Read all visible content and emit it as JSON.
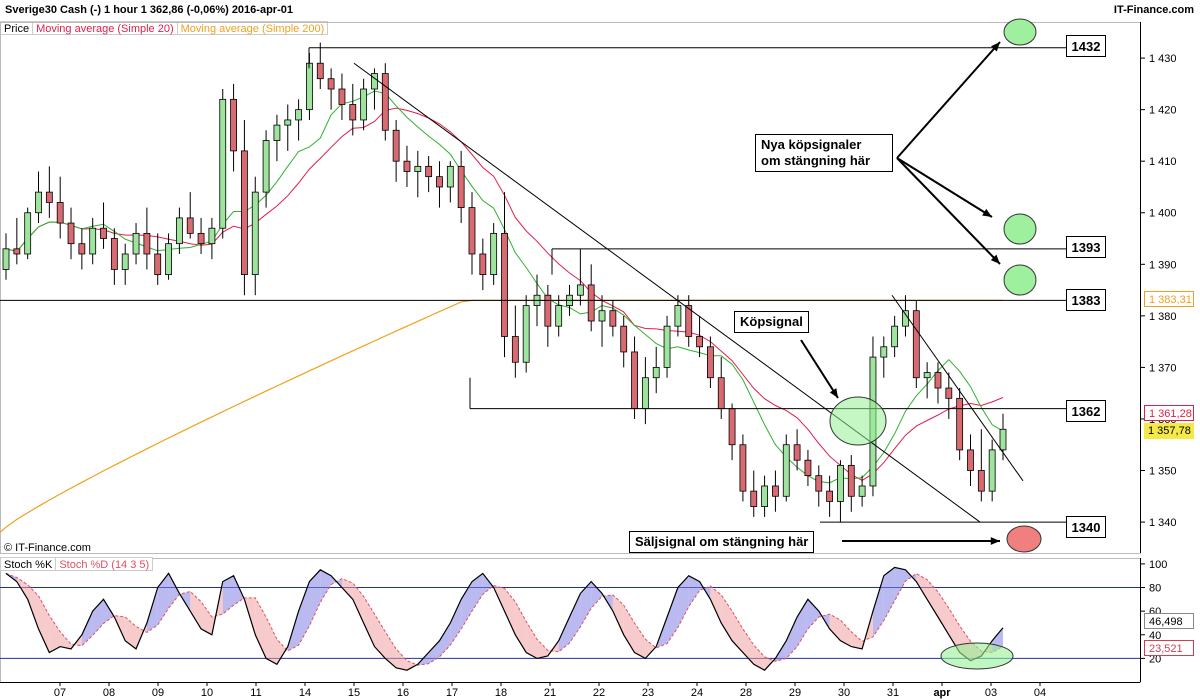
{
  "header": {
    "title": "Sverige30 Cash (-)   1 hour   1 362,86 (-0,06%)   2016-apr-01",
    "brand": "IT-Finance.com"
  },
  "legend": {
    "price": "Price",
    "ma20": "Moving average (Simple 20)",
    "ma200": "Moving average (Simple 200)"
  },
  "copyright": "© IT-Finance.com",
  "stoch_legend": {
    "k": "Stoch %K",
    "d": "Stoch %D (14 3 5)"
  },
  "levels": {
    "l1432": "1432",
    "l1393": "1393",
    "l1383": "1383",
    "l1362": "1362",
    "l1340": "1340"
  },
  "notes": {
    "buy_new_line1": "Nya köpsignaler",
    "buy_new_line2": "om stängning här",
    "buy": "Köpsignal",
    "sell": "Säljsignal om stängning här"
  },
  "price_tags": {
    "ma200": "1 383,31",
    "ma20": "1 361,28",
    "last": "1 357,78"
  },
  "stoch_tags": {
    "k": "46,498",
    "d": "23,521"
  },
  "colors": {
    "up": "#9ee39e",
    "down": "#d86a72",
    "ma20": "#e0204a",
    "ma200": "#f0a020",
    "axis": "#000000"
  },
  "chart_data": {
    "type": "candlestick",
    "y_axis": {
      "ticks": [
        1340,
        1350,
        1360,
        1370,
        1380,
        1390,
        1400,
        1410,
        1420,
        1430
      ],
      "tick_labels": [
        "1 340",
        "1 350",
        "1 360",
        "1 370",
        "1 380",
        "1 390",
        "1 400",
        "1 410",
        "1 420",
        "1 430"
      ],
      "range": [
        1334,
        1437
      ]
    },
    "x_axis": {
      "labels": [
        "07",
        "08",
        "09",
        "10",
        "11",
        "14",
        "15",
        "16",
        "17",
        "18",
        "21",
        "22",
        "23",
        "24",
        "28",
        "29",
        "30",
        "31",
        "apr",
        "03",
        "04"
      ]
    },
    "stoch_axis": {
      "ticks": [
        20,
        40,
        60,
        80,
        100
      ],
      "range": [
        0,
        105
      ]
    },
    "horizontal_levels": [
      1432,
      1393,
      1383,
      1362,
      1340
    ],
    "ohlc": [
      [
        1389,
        1396,
        1387,
        1393
      ],
      [
        1393,
        1399,
        1390,
        1392
      ],
      [
        1392,
        1401,
        1391,
        1400
      ],
      [
        1400,
        1408,
        1398,
        1404
      ],
      [
        1404,
        1409,
        1399,
        1402
      ],
      [
        1402,
        1407,
        1395,
        1398
      ],
      [
        1398,
        1401,
        1391,
        1394
      ],
      [
        1394,
        1397,
        1389,
        1392
      ],
      [
        1392,
        1399,
        1390,
        1397
      ],
      [
        1397,
        1402,
        1393,
        1395
      ],
      [
        1395,
        1397,
        1386,
        1389
      ],
      [
        1389,
        1394,
        1386,
        1392
      ],
      [
        1392,
        1398,
        1390,
        1396
      ],
      [
        1396,
        1401,
        1389,
        1392
      ],
      [
        1392,
        1396,
        1386,
        1388
      ],
      [
        1388,
        1396,
        1387,
        1394
      ],
      [
        1394,
        1401,
        1392,
        1399
      ],
      [
        1399,
        1404,
        1395,
        1396
      ],
      [
        1396,
        1399,
        1392,
        1394
      ],
      [
        1394,
        1399,
        1391,
        1397
      ],
      [
        1397,
        1424,
        1395,
        1422
      ],
      [
        1422,
        1425,
        1408,
        1412
      ],
      [
        1412,
        1418,
        1384,
        1388
      ],
      [
        1388,
        1407,
        1384,
        1404
      ],
      [
        1404,
        1416,
        1401,
        1414
      ],
      [
        1414,
        1419,
        1410,
        1417
      ],
      [
        1417,
        1421,
        1412,
        1418
      ],
      [
        1418,
        1422,
        1414,
        1420
      ],
      [
        1420,
        1431,
        1418,
        1429
      ],
      [
        1429,
        1433,
        1424,
        1426
      ],
      [
        1426,
        1428,
        1420,
        1424
      ],
      [
        1424,
        1427,
        1418,
        1421
      ],
      [
        1421,
        1425,
        1415,
        1418
      ],
      [
        1418,
        1426,
        1416,
        1424
      ],
      [
        1424,
        1428,
        1420,
        1427
      ],
      [
        1427,
        1429,
        1414,
        1416
      ],
      [
        1416,
        1418,
        1406,
        1410
      ],
      [
        1410,
        1413,
        1405,
        1408
      ],
      [
        1408,
        1412,
        1403,
        1409
      ],
      [
        1409,
        1411,
        1404,
        1407
      ],
      [
        1407,
        1410,
        1401,
        1405
      ],
      [
        1405,
        1410,
        1402,
        1409
      ],
      [
        1409,
        1412,
        1398,
        1401
      ],
      [
        1401,
        1404,
        1388,
        1392
      ],
      [
        1392,
        1395,
        1385,
        1388
      ],
      [
        1388,
        1398,
        1386,
        1396
      ],
      [
        1396,
        1404,
        1372,
        1376
      ],
      [
        1376,
        1382,
        1368,
        1371
      ],
      [
        1371,
        1384,
        1369,
        1382
      ],
      [
        1382,
        1388,
        1378,
        1384
      ],
      [
        1384,
        1386,
        1374,
        1378
      ],
      [
        1378,
        1384,
        1376,
        1382
      ],
      [
        1382,
        1386,
        1380,
        1384
      ],
      [
        1384,
        1393,
        1382,
        1386
      ],
      [
        1386,
        1390,
        1377,
        1379
      ],
      [
        1379,
        1384,
        1374,
        1381
      ],
      [
        1381,
        1383,
        1376,
        1378
      ],
      [
        1378,
        1380,
        1370,
        1373
      ],
      [
        1373,
        1376,
        1360,
        1362
      ],
      [
        1362,
        1372,
        1359,
        1368
      ],
      [
        1368,
        1374,
        1365,
        1370
      ],
      [
        1370,
        1380,
        1368,
        1378
      ],
      [
        1378,
        1384,
        1376,
        1382
      ],
      [
        1382,
        1384,
        1374,
        1376
      ],
      [
        1376,
        1380,
        1372,
        1374
      ],
      [
        1374,
        1376,
        1366,
        1368
      ],
      [
        1368,
        1372,
        1360,
        1362
      ],
      [
        1362,
        1363,
        1352,
        1355
      ],
      [
        1355,
        1357,
        1344,
        1346
      ],
      [
        1346,
        1350,
        1341,
        1343
      ],
      [
        1343,
        1349,
        1341,
        1347
      ],
      [
        1347,
        1350,
        1342,
        1345
      ],
      [
        1345,
        1357,
        1344,
        1355
      ],
      [
        1355,
        1358,
        1350,
        1352
      ],
      [
        1352,
        1354,
        1347,
        1349
      ],
      [
        1349,
        1351,
        1343,
        1346
      ],
      [
        1346,
        1349,
        1341,
        1344
      ],
      [
        1344,
        1352,
        1340,
        1351
      ],
      [
        1351,
        1353,
        1342,
        1345
      ],
      [
        1345,
        1349,
        1343,
        1347
      ],
      [
        1347,
        1376,
        1345,
        1372
      ],
      [
        1372,
        1376,
        1368,
        1374
      ],
      [
        1374,
        1380,
        1372,
        1378
      ],
      [
        1378,
        1384,
        1376,
        1381
      ],
      [
        1381,
        1383,
        1366,
        1368
      ],
      [
        1368,
        1371,
        1364,
        1369
      ],
      [
        1369,
        1371,
        1363,
        1366
      ],
      [
        1366,
        1369,
        1360,
        1364
      ],
      [
        1364,
        1366,
        1352,
        1354
      ],
      [
        1354,
        1357,
        1347,
        1350
      ],
      [
        1350,
        1358,
        1344,
        1346
      ],
      [
        1346,
        1356,
        1344,
        1354
      ],
      [
        1354,
        1361,
        1352,
        1358
      ]
    ],
    "ma20_label": "Moving average (Simple 20)",
    "ma200_label": "Moving average (Simple 200)",
    "stoch_k": [
      92,
      85,
      70,
      45,
      25,
      30,
      28,
      40,
      60,
      70,
      55,
      35,
      28,
      50,
      80,
      92,
      75,
      60,
      45,
      40,
      85,
      90,
      70,
      40,
      20,
      15,
      30,
      60,
      85,
      95,
      90,
      80,
      70,
      50,
      30,
      20,
      12,
      10,
      15,
      25,
      35,
      50,
      70,
      85,
      92,
      80,
      60,
      40,
      25,
      20,
      22,
      35,
      55,
      75,
      85,
      75,
      60,
      40,
      25,
      20,
      30,
      55,
      80,
      90,
      85,
      70,
      50,
      35,
      25,
      15,
      10,
      20,
      35,
      55,
      70,
      60,
      45,
      35,
      30,
      28,
      60,
      90,
      97,
      95,
      85,
      70,
      55,
      40,
      25,
      18,
      22,
      35,
      46
    ]
  }
}
